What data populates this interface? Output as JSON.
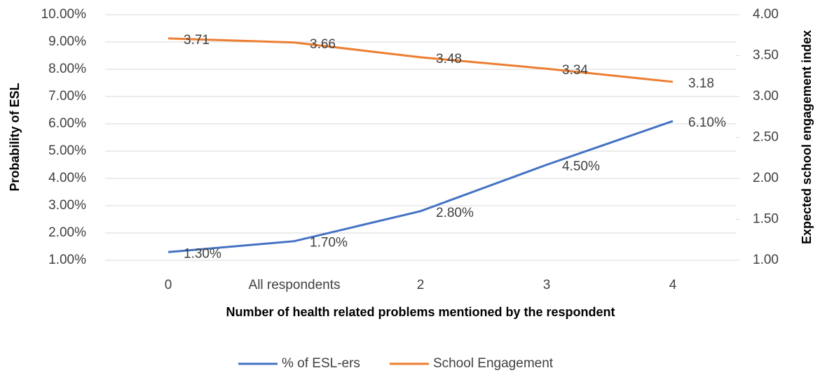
{
  "chart_data": {
    "type": "line",
    "x_label": "Number of health related problems mentioned by the respondent",
    "y_label": "Probability of ESL",
    "y2_label": "Expected school engagement index",
    "categories": [
      "0",
      "All respondents",
      "2",
      "3",
      "4"
    ],
    "series": [
      {
        "name": "% of ESL-ers",
        "color": "#4472c4",
        "values": [
          1.3,
          1.7,
          2.8,
          4.5,
          6.1
        ],
        "value_labels": [
          "1.30%",
          "1.70%",
          "2.80%",
          "4.50%",
          "6.10%"
        ]
      },
      {
        "name": "School Engagement",
        "color": "#ed7d31",
        "axis": "y2",
        "values": [
          3.71,
          3.66,
          3.48,
          3.34,
          3.18
        ]
      }
    ],
    "ylim": [
      1,
      10
    ],
    "yticks": [
      {
        "value": 1,
        "label": "1.00%"
      },
      {
        "value": 2,
        "label": "2.00%"
      },
      {
        "value": 3,
        "label": "3.00%"
      },
      {
        "value": 4,
        "label": "4.00%"
      },
      {
        "value": 5,
        "label": "5.00%"
      },
      {
        "value": 6,
        "label": "6.00%"
      },
      {
        "value": 7,
        "label": "7.00%"
      },
      {
        "value": 8,
        "label": "8.00%"
      },
      {
        "value": 9,
        "label": "9.00%"
      },
      {
        "value": 10,
        "label": "10.00%"
      }
    ],
    "y2lim": [
      1,
      4
    ],
    "y2ticks": [
      {
        "value": 1,
        "label": "1.00"
      },
      {
        "value": 1.5,
        "label": "1.50"
      },
      {
        "value": 2,
        "label": "2.00"
      },
      {
        "value": 2.5,
        "label": "2.50"
      },
      {
        "value": 3,
        "label": "3.00"
      },
      {
        "value": 3.5,
        "label": "3.50"
      },
      {
        "value": 4,
        "label": "4.00"
      }
    ],
    "grid": true,
    "legend": "bottom"
  }
}
